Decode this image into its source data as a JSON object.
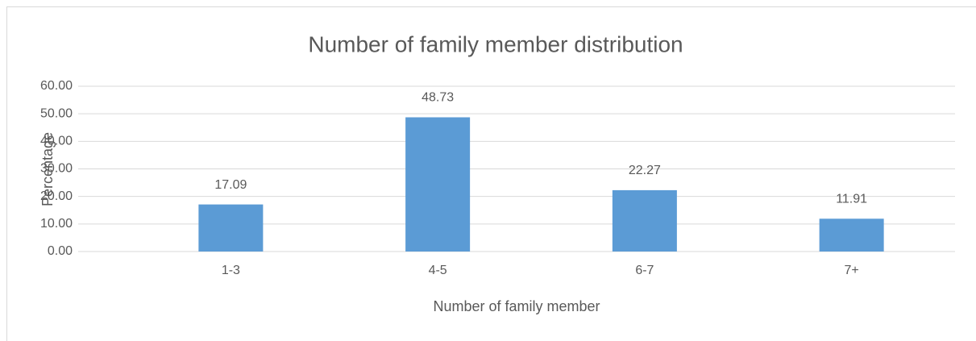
{
  "chart_data": {
    "type": "bar",
    "title": "Number of family member distribution",
    "x_label": "Number of family member",
    "y_label": "Percentage",
    "categories": [
      "1-3",
      "4-5",
      "6-7",
      "7+"
    ],
    "values": [
      17.09,
      48.73,
      22.27,
      11.91
    ],
    "color": "#5b9bd5",
    "ylim": [
      0,
      60
    ],
    "yticks": [
      {
        "value": 0,
        "label": "0.00"
      },
      {
        "value": 10,
        "label": "10.00"
      },
      {
        "value": 20,
        "label": "20.00"
      },
      {
        "value": 30,
        "label": "30.00"
      },
      {
        "value": 40,
        "label": "40.00"
      },
      {
        "value": 50,
        "label": "50.00"
      },
      {
        "value": 60,
        "label": "60.00"
      }
    ],
    "grid": true
  }
}
